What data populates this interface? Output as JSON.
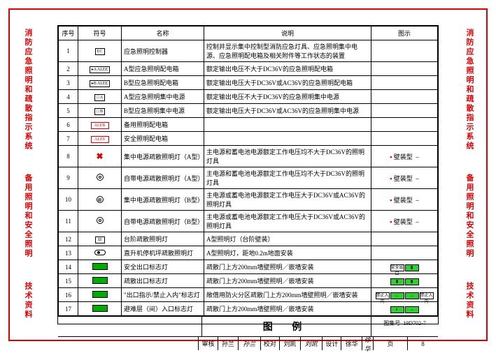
{
  "sideLabels": {
    "top": "消防应急照明和疏散指示系统",
    "mid": "备用照明和安全照明",
    "bot": "技术资料"
  },
  "headers": {
    "no": "序号",
    "sym": "符号",
    "name": "名称",
    "desc": "说明",
    "pic": "图示"
  },
  "rows": [
    {
      "no": "1",
      "sym": "EC",
      "symClass": "sym-box",
      "name": "应急照明控制器",
      "desc": "控制并显示集中控制型消防应急灯具、应急照明集中电源、应急照明配电箱及相关附件等工作状态的装置",
      "pic": ""
    },
    {
      "no": "2",
      "sym": "▸A ALEE",
      "symClass": "sym-box sym-wide",
      "name": "A型应急照明配电箱",
      "desc": "额定输出电压不大于DC36V的应急照明配电箱",
      "pic": ""
    },
    {
      "no": "3",
      "sym": "▸B ALEE",
      "symClass": "sym-box sym-wide",
      "name": "B型应急照明配电箱",
      "desc": "额定输出电压大于DC36V或AC36V的应急照明配电箱",
      "pic": ""
    },
    {
      "no": "4",
      "sym": "□ A",
      "symClass": "sym-box",
      "name": "A型应急照明集中电源",
      "desc": "额定输出电压不大于DC36V的应急照明集中电源",
      "pic": ""
    },
    {
      "no": "5",
      "sym": "□ B",
      "symClass": "sym-box",
      "name": "B型应急照明集中电源",
      "desc": "额定输出电压大于DC36V或AC36V的应急照明集中电源",
      "pic": ""
    },
    {
      "no": "6",
      "sym": "ALEB",
      "symClass": "sym-box sym-wide sym-red",
      "name": "备用照明配电箱",
      "desc": "",
      "pic": ""
    },
    {
      "no": "7",
      "sym": "ALES",
      "symClass": "sym-box sym-wide sym-red",
      "name": "安全照明配电箱",
      "desc": "",
      "pic": ""
    },
    {
      "no": "8",
      "sym": "✖",
      "symClass": "sym-x",
      "name": "集中电源疏散照明灯（A型）",
      "desc": "主电源和蓄电池电源额定工作电压均不大于DC36V的照明灯具",
      "pic": "壁装型",
      "picNote": true
    },
    {
      "no": "9",
      "sym": "",
      "symClass": "sym-circdot",
      "name": "自带电源疏散照明灯（A型）",
      "desc": "主电源和蓄电池电源额定工作电压均不大于DC36V的照明灯具",
      "pic": "壁装型",
      "picNote": true
    },
    {
      "no": "10",
      "sym": "⊗",
      "symClass": "sym-circx",
      "name": "集中电源疏散照明灯（B型）",
      "desc": "主电源或蓄电池电源额定工作电压大于DC36V或AC36V的照明灯具",
      "pic": "壁装型",
      "picNote": true
    },
    {
      "no": "11",
      "sym": "",
      "symClass": "sym-circdot",
      "name": "自带电源疏散照明灯（B型）",
      "desc": "主电源或蓄电池电源额定工作电压大于DC36V或AC36V的照明灯具",
      "pic": "壁装型",
      "picNote": true
    },
    {
      "no": "12",
      "sym": "⊟",
      "symClass": "sym-box",
      "name": "台阶疏散照明灯",
      "desc": "A型照明灯（台阶壁装）",
      "pic": ""
    },
    {
      "no": "13",
      "sym": "",
      "symClass": "sym-pill",
      "name": "直升机停机坪疏散照明灯",
      "desc": "A型照明灯，距地0.2m地面安装",
      "pic": ""
    },
    {
      "no": "14",
      "sym": "",
      "symClass": "sym-green",
      "name": "安全出口标志灯",
      "desc": "疏散门上方200mm墙壁照明／嵌墙安装",
      "pic": "",
      "exit": "safe"
    },
    {
      "no": "15",
      "sym": "",
      "symClass": "sym-green",
      "name": "疏散出口标志灯",
      "desc": "疏散门上方200mm墙壁照明／嵌墙安装",
      "pic": "",
      "exit": "evac"
    },
    {
      "no": "16",
      "sym": "",
      "symClass": "sym-green",
      "name": "\"出口指示/禁止入内\"标志灯",
      "desc": "敞借用防火分区疏散门上方200mm墙壁照明／嵌墙安装",
      "pic": "",
      "exit": "forbid"
    },
    {
      "no": "17",
      "sym": "",
      "symClass": "sym-green",
      "name": "避难层（间）入口标志灯",
      "desc": "疏散门上方200mm墙壁照明／嵌墙安装",
      "pic": "",
      "exit": "refuge"
    }
  ],
  "footer": {
    "title": "图 例",
    "setLabel": "图集号",
    "setNo": "19D702-7",
    "pageLabel": "页",
    "pageNo": "8",
    "reviewLabel": "审核",
    "reviewName": "孙兰",
    "reviewSig": "孙兰",
    "checkLabel": "校对",
    "checkName": "刘凯",
    "checkSig": "刘凯",
    "designLabel": "设计",
    "designName": "徐华",
    "designSig": "徐华"
  }
}
